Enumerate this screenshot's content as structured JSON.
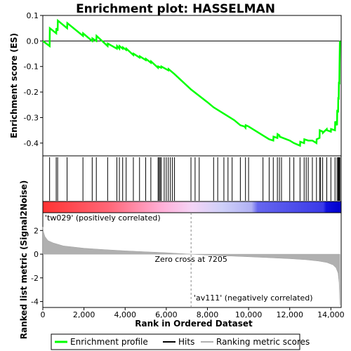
{
  "chart_data": [
    {
      "type": "line",
      "title": "Enrichment plot: HASSELMAN",
      "ylabel": "Enrichment score (ES)",
      "xlim": [
        0,
        14500
      ],
      "ylim": [
        -0.45,
        0.1
      ],
      "yticks": [
        "0.1",
        "0.0",
        "-0.1",
        "-0.2",
        "-0.3",
        "-0.4"
      ],
      "grid": false,
      "series": [
        {
          "name": "Enrichment profile",
          "color": "#00ff00",
          "x": [
            0,
            330,
            340,
            650,
            660,
            720,
            730,
            1180,
            1190,
            1950,
            1960,
            2400,
            2410,
            2600,
            2610,
            3150,
            3160,
            3600,
            3610,
            3720,
            3730,
            3880,
            3890,
            4050,
            4060,
            4400,
            4410,
            4700,
            4710,
            5000,
            5010,
            5250,
            5260,
            5600,
            5610,
            5750,
            5760,
            6100,
            6110,
            6400,
            7205,
            8000,
            8300,
            8900,
            9300,
            9600,
            9800,
            9850,
            9860,
            10000,
            10700,
            11000,
            11200,
            11210,
            11400,
            11410,
            11500,
            11510,
            12000,
            12200,
            12500,
            12510,
            12700,
            12710,
            12900,
            13100,
            13300,
            13310,
            13450,
            13460,
            13600,
            13610,
            13800,
            13810,
            14000,
            14010,
            14200,
            14210,
            14300,
            14310,
            14350,
            14360,
            14380,
            14390,
            14410,
            14420,
            14440
          ],
          "y": [
            0.0,
            -0.02,
            0.05,
            0.03,
            0.05,
            0.04,
            0.08,
            0.05,
            0.07,
            0.02,
            0.03,
            0.0,
            0.01,
            -0.0,
            0.02,
            -0.02,
            -0.01,
            -0.03,
            -0.02,
            -0.03,
            -0.02,
            -0.03,
            -0.025,
            -0.035,
            -0.03,
            -0.055,
            -0.05,
            -0.065,
            -0.06,
            -0.075,
            -0.07,
            -0.085,
            -0.08,
            -0.105,
            -0.1,
            -0.105,
            -0.1,
            -0.115,
            -0.11,
            -0.13,
            -0.19,
            -0.24,
            -0.26,
            -0.29,
            -0.31,
            -0.33,
            -0.335,
            -0.34,
            -0.33,
            -0.335,
            -0.37,
            -0.385,
            -0.39,
            -0.375,
            -0.38,
            -0.365,
            -0.37,
            -0.375,
            -0.39,
            -0.4,
            -0.41,
            -0.395,
            -0.4,
            -0.385,
            -0.39,
            -0.39,
            -0.4,
            -0.385,
            -0.38,
            -0.35,
            -0.355,
            -0.36,
            -0.345,
            -0.35,
            -0.355,
            -0.345,
            -0.35,
            -0.315,
            -0.33,
            -0.27,
            -0.28,
            -0.22,
            -0.23,
            -0.16,
            -0.17,
            -0.09,
            0.0
          ]
        }
      ]
    },
    {
      "type": "heatmap",
      "hits_x": [
        330,
        650,
        720,
        1180,
        1950,
        2400,
        2600,
        3150,
        3600,
        3720,
        3880,
        4050,
        4400,
        4700,
        5000,
        5250,
        5600,
        5650,
        5700,
        5750,
        5900,
        6000,
        6100,
        6200,
        6300,
        6400,
        7200,
        7400,
        7600,
        8300,
        8500,
        8800,
        9000,
        9200,
        9600,
        9850,
        10000,
        10700,
        11000,
        11200,
        11400,
        11500,
        11600,
        12000,
        12200,
        12500,
        12700,
        12800,
        12900,
        13100,
        13300,
        13450,
        13500,
        13600,
        13800,
        14000,
        14200,
        14300,
        14350,
        14380,
        14410,
        14440
      ],
      "red_label": "'tw029' (positively correlated)",
      "blue_label": "'av111' (negatively correlated)",
      "red_color": "#ff0000",
      "blue_color": "#0000ff"
    },
    {
      "type": "area",
      "ylabel": "Ranked list metric (Signal2Noise)",
      "xlabel": "Rank in Ordered Dataset",
      "xlim": [
        0,
        14500
      ],
      "ylim": [
        -4.5,
        3.5
      ],
      "xticks": [
        0,
        2000,
        4000,
        6000,
        8000,
        10000,
        12000,
        14000
      ],
      "xtick_labels": [
        "0",
        "2,000",
        "4,000",
        "6,000",
        "8,000",
        "10,000",
        "12,000",
        "14,000"
      ],
      "yticks": [
        "2",
        "0",
        "-2",
        "-4"
      ],
      "zero_cross": 7205,
      "zero_cross_label": "Zero cross at 7205",
      "color": "#b0b0b0",
      "x": [
        0,
        30,
        100,
        250,
        500,
        1000,
        2000,
        3000,
        4000,
        5000,
        6000,
        7205,
        8000,
        9000,
        10000,
        11000,
        12000,
        12800,
        13400,
        13800,
        14100,
        14250,
        14350,
        14400,
        14440
      ],
      "y": [
        2.3,
        1.9,
        1.5,
        1.15,
        0.95,
        0.7,
        0.5,
        0.38,
        0.28,
        0.2,
        0.12,
        0.0,
        -0.08,
        -0.15,
        -0.22,
        -0.3,
        -0.38,
        -0.47,
        -0.58,
        -0.7,
        -0.9,
        -1.15,
        -1.6,
        -2.4,
        -4.3
      ]
    }
  ],
  "legend": {
    "items": [
      {
        "label": "Enrichment profile",
        "color": "#00ff00"
      },
      {
        "label": "Hits",
        "color": "#000000"
      },
      {
        "label": "Ranking metric scores",
        "color": "#b0b0b0"
      }
    ]
  }
}
